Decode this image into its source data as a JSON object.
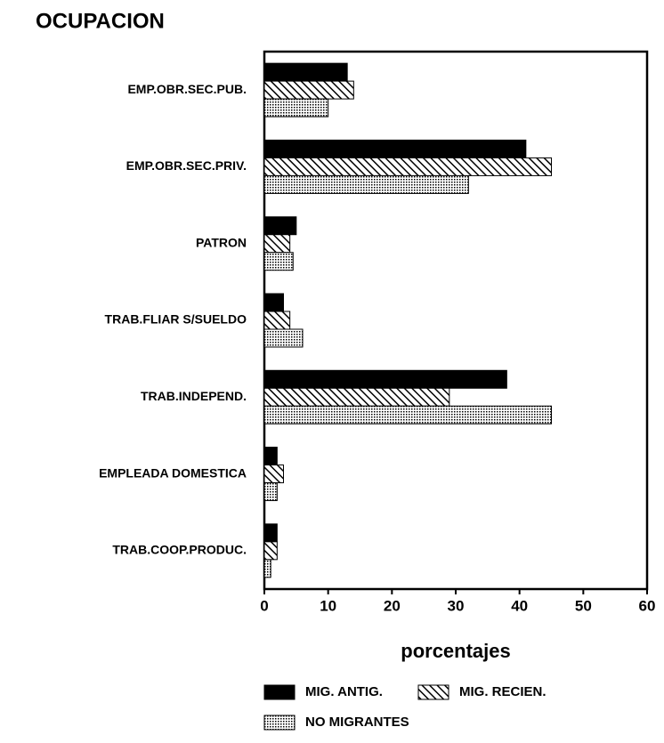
{
  "chart_data": {
    "type": "barh",
    "title": "OCUPACION",
    "xlabel": "porcentajes",
    "categories": [
      "EMP.OBR.SEC.PUB.",
      "EMP.OBR.SEC.PRIV.",
      "PATRON",
      "TRAB.FLIAR S/SUELDO",
      "TRAB.INDEPEND.",
      "EMPLEADA DOMESTICA",
      "TRAB.COOP.PRODUC."
    ],
    "series": [
      {
        "name": "MIG. ANTIG.",
        "color": "#000000",
        "pattern": "solid",
        "values": [
          13,
          41,
          5,
          3,
          38,
          2,
          2
        ]
      },
      {
        "name": "MIG. RECIEN.",
        "color": "#000000",
        "pattern": "hatch",
        "values": [
          14,
          45,
          4,
          4,
          29,
          3,
          2
        ]
      },
      {
        "name": "NO MIGRANTES",
        "color": "#000000",
        "pattern": "dots",
        "values": [
          10,
          32,
          4.5,
          6,
          45,
          2,
          1
        ]
      }
    ],
    "xlim": [
      0,
      60
    ],
    "xticks": [
      0,
      10,
      20,
      30,
      40,
      50,
      60
    ]
  }
}
